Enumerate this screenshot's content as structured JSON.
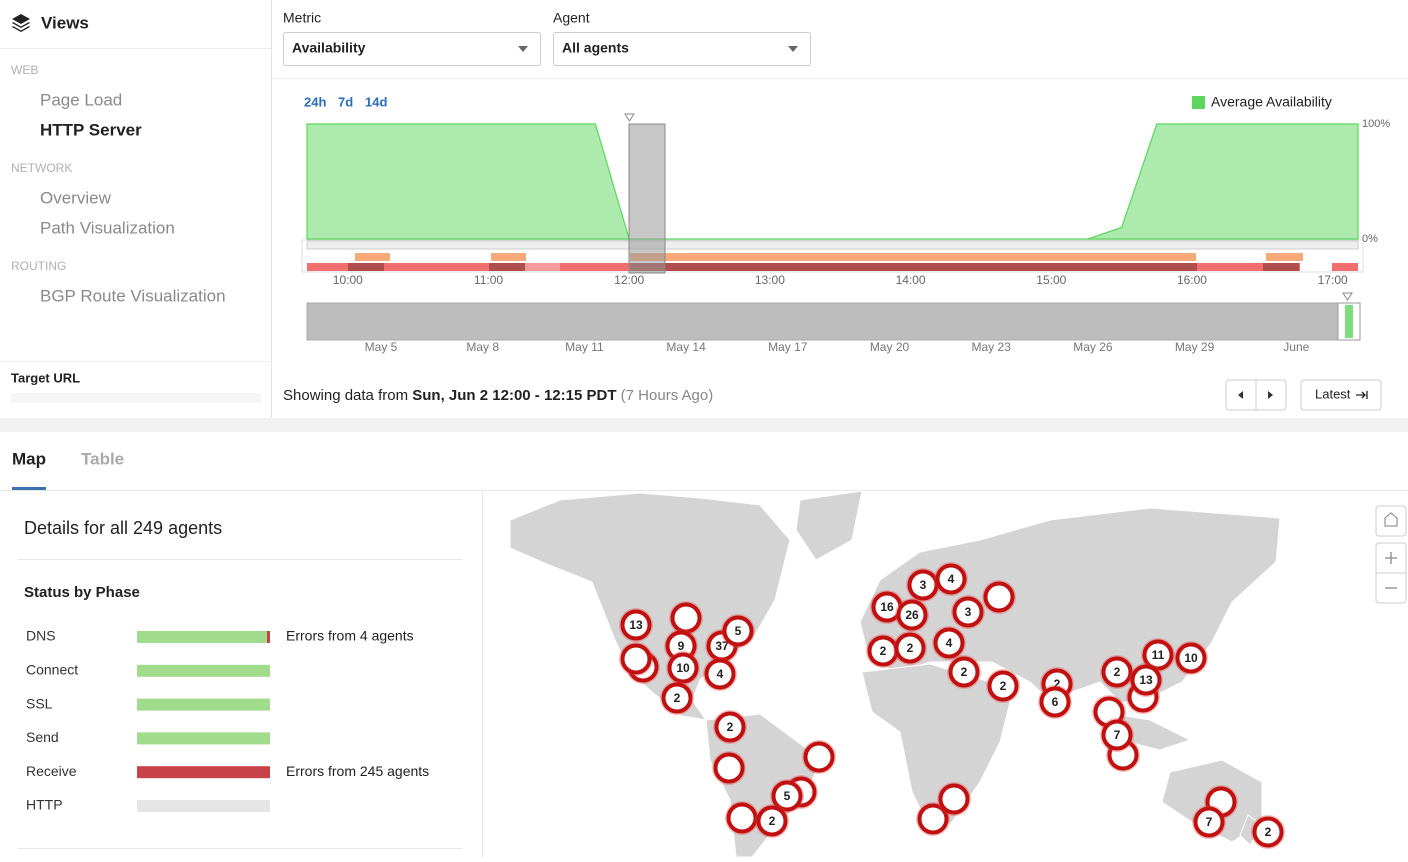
{
  "sidebar": {
    "title": "Views",
    "sections": [
      {
        "heading": "WEB",
        "items": [
          {
            "label": "Page Load"
          },
          {
            "label": "HTTP Server",
            "active": true
          }
        ]
      },
      {
        "heading": "NETWORK",
        "items": [
          {
            "label": "Overview"
          },
          {
            "label": "Path Visualization"
          }
        ]
      },
      {
        "heading": "ROUTING",
        "items": [
          {
            "label": "BGP Route Visualization"
          }
        ]
      }
    ],
    "target_label": "Target URL"
  },
  "filters": [
    {
      "label": "Metric",
      "value": "Availability"
    },
    {
      "label": "Agent",
      "value": "All agents"
    }
  ],
  "chart_data": {
    "type": "area",
    "range_buttons": [
      "24h",
      "7d",
      "14d"
    ],
    "x": [
      9.71,
      11.76,
      12.0,
      15.26,
      15.5,
      15.75,
      17.18
    ],
    "series": [
      {
        "name": "Average Availability",
        "color": "#5cd65c",
        "values": [
          100,
          100,
          0,
          0,
          10,
          100,
          100
        ]
      }
    ],
    "xlim": [
      9.71,
      17.18
    ],
    "ylim": [
      0,
      100
    ],
    "xticks": [
      {
        "value": 10,
        "label": "10:00"
      },
      {
        "value": 11,
        "label": "11:00"
      },
      {
        "value": 12,
        "label": "12:00"
      },
      {
        "value": 13,
        "label": "13:00"
      },
      {
        "value": 14,
        "label": "14:00"
      },
      {
        "value": 15,
        "label": "15:00"
      },
      {
        "value": 16,
        "label": "16:00"
      },
      {
        "value": 17,
        "label": "17:00"
      }
    ],
    "yticks": [
      {
        "value": 100,
        "label": "100%"
      },
      {
        "value": 0,
        "label": "0%"
      }
    ],
    "grid": false,
    "legend": "top-right"
  },
  "overview": {
    "labels": [
      "May 5",
      "May 8",
      "May 11",
      "May 14",
      "May 17",
      "May 20",
      "May 23",
      "May 26",
      "May 29",
      "June"
    ]
  },
  "status": {
    "prefix": "Showing data from",
    "range": "Sun, Jun 2 12:00 - 12:15 PDT",
    "ago": "(7 Hours Ago)",
    "latest_button": "Latest"
  },
  "tabs": [
    {
      "label": "Map",
      "active": true
    },
    {
      "label": "Table"
    }
  ],
  "details": {
    "title": "Details for all 249 agents",
    "subtitle": "Status by Phase",
    "phases": [
      {
        "name": "DNS",
        "status": "partial",
        "note": "Errors from 4 agents"
      },
      {
        "name": "Connect",
        "status": "ok"
      },
      {
        "name": "SSL",
        "status": "ok"
      },
      {
        "name": "Send",
        "status": "ok"
      },
      {
        "name": "Receive",
        "status": "error",
        "note": "Errors from 245 agents"
      },
      {
        "name": "HTTP",
        "status": "none"
      }
    ]
  },
  "map": {
    "clusters": [
      13,
      9,
      37,
      5,
      10,
      4,
      2,
      2,
      5,
      2,
      16,
      3,
      4,
      26,
      3,
      2,
      2,
      4,
      2,
      2,
      2,
      6,
      2,
      11,
      10,
      13,
      7,
      7,
      2
    ]
  }
}
